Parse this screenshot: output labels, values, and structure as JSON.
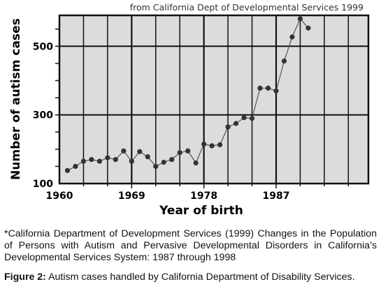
{
  "chart_data": {
    "type": "line",
    "title": "from California Dept of Developmental Services 1999",
    "xlabel": "Year of birth",
    "ylabel": "Number of autism cases",
    "xlim": [
      1960,
      1998.5
    ],
    "ylim": [
      100,
      590
    ],
    "x_ticks": [
      1960,
      1969,
      1978,
      1987
    ],
    "y_ticks": [
      100,
      300,
      500
    ],
    "grid": true,
    "marker": "circle",
    "x": [
      1961,
      1962,
      1963,
      1964,
      1965,
      1966,
      1967,
      1968,
      1969,
      1970,
      1971,
      1972,
      1973,
      1974,
      1975,
      1976,
      1977,
      1978,
      1979,
      1980,
      1981,
      1982,
      1983,
      1984,
      1985,
      1986,
      1987,
      1988,
      1989,
      1990,
      1991
    ],
    "y": [
      138,
      150,
      165,
      170,
      165,
      175,
      170,
      195,
      165,
      193,
      178,
      150,
      162,
      170,
      190,
      195,
      160,
      215,
      210,
      213,
      265,
      275,
      292,
      290,
      378,
      378,
      370,
      457,
      527,
      580,
      553
    ]
  },
  "caption": {
    "source_note": "*California Department of Development Services (1999) Changes in the Population of Persons with Autism and Pervasive Developmental Disorders in California’s Developmental Services System: 1987 through 1998",
    "figure_label": "Figure 2:",
    "figure_text": " Autism cases handled by California Department of Disability Services."
  }
}
